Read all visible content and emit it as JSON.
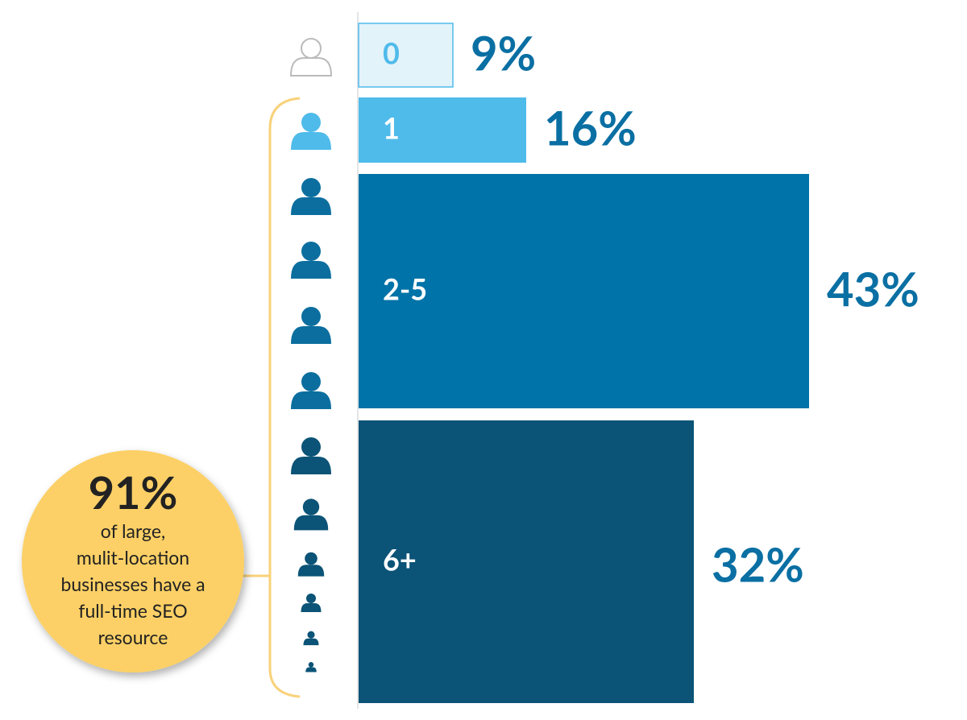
{
  "chart_data": {
    "type": "bar",
    "categories": [
      "0",
      "1",
      "2-5",
      "6+"
    ],
    "values": [
      9,
      16,
      43,
      32
    ],
    "value_labels": [
      "9%",
      "16%",
      "43%",
      "32%"
    ],
    "colors": [
      "#e3f3fa",
      "#4fbbea",
      "#0073a8",
      "#0b5377"
    ],
    "annotation": {
      "value": "91%",
      "lines": [
        "of large,",
        "mulit-location",
        "businesses have a",
        "full-time SEO",
        "resource"
      ]
    }
  }
}
